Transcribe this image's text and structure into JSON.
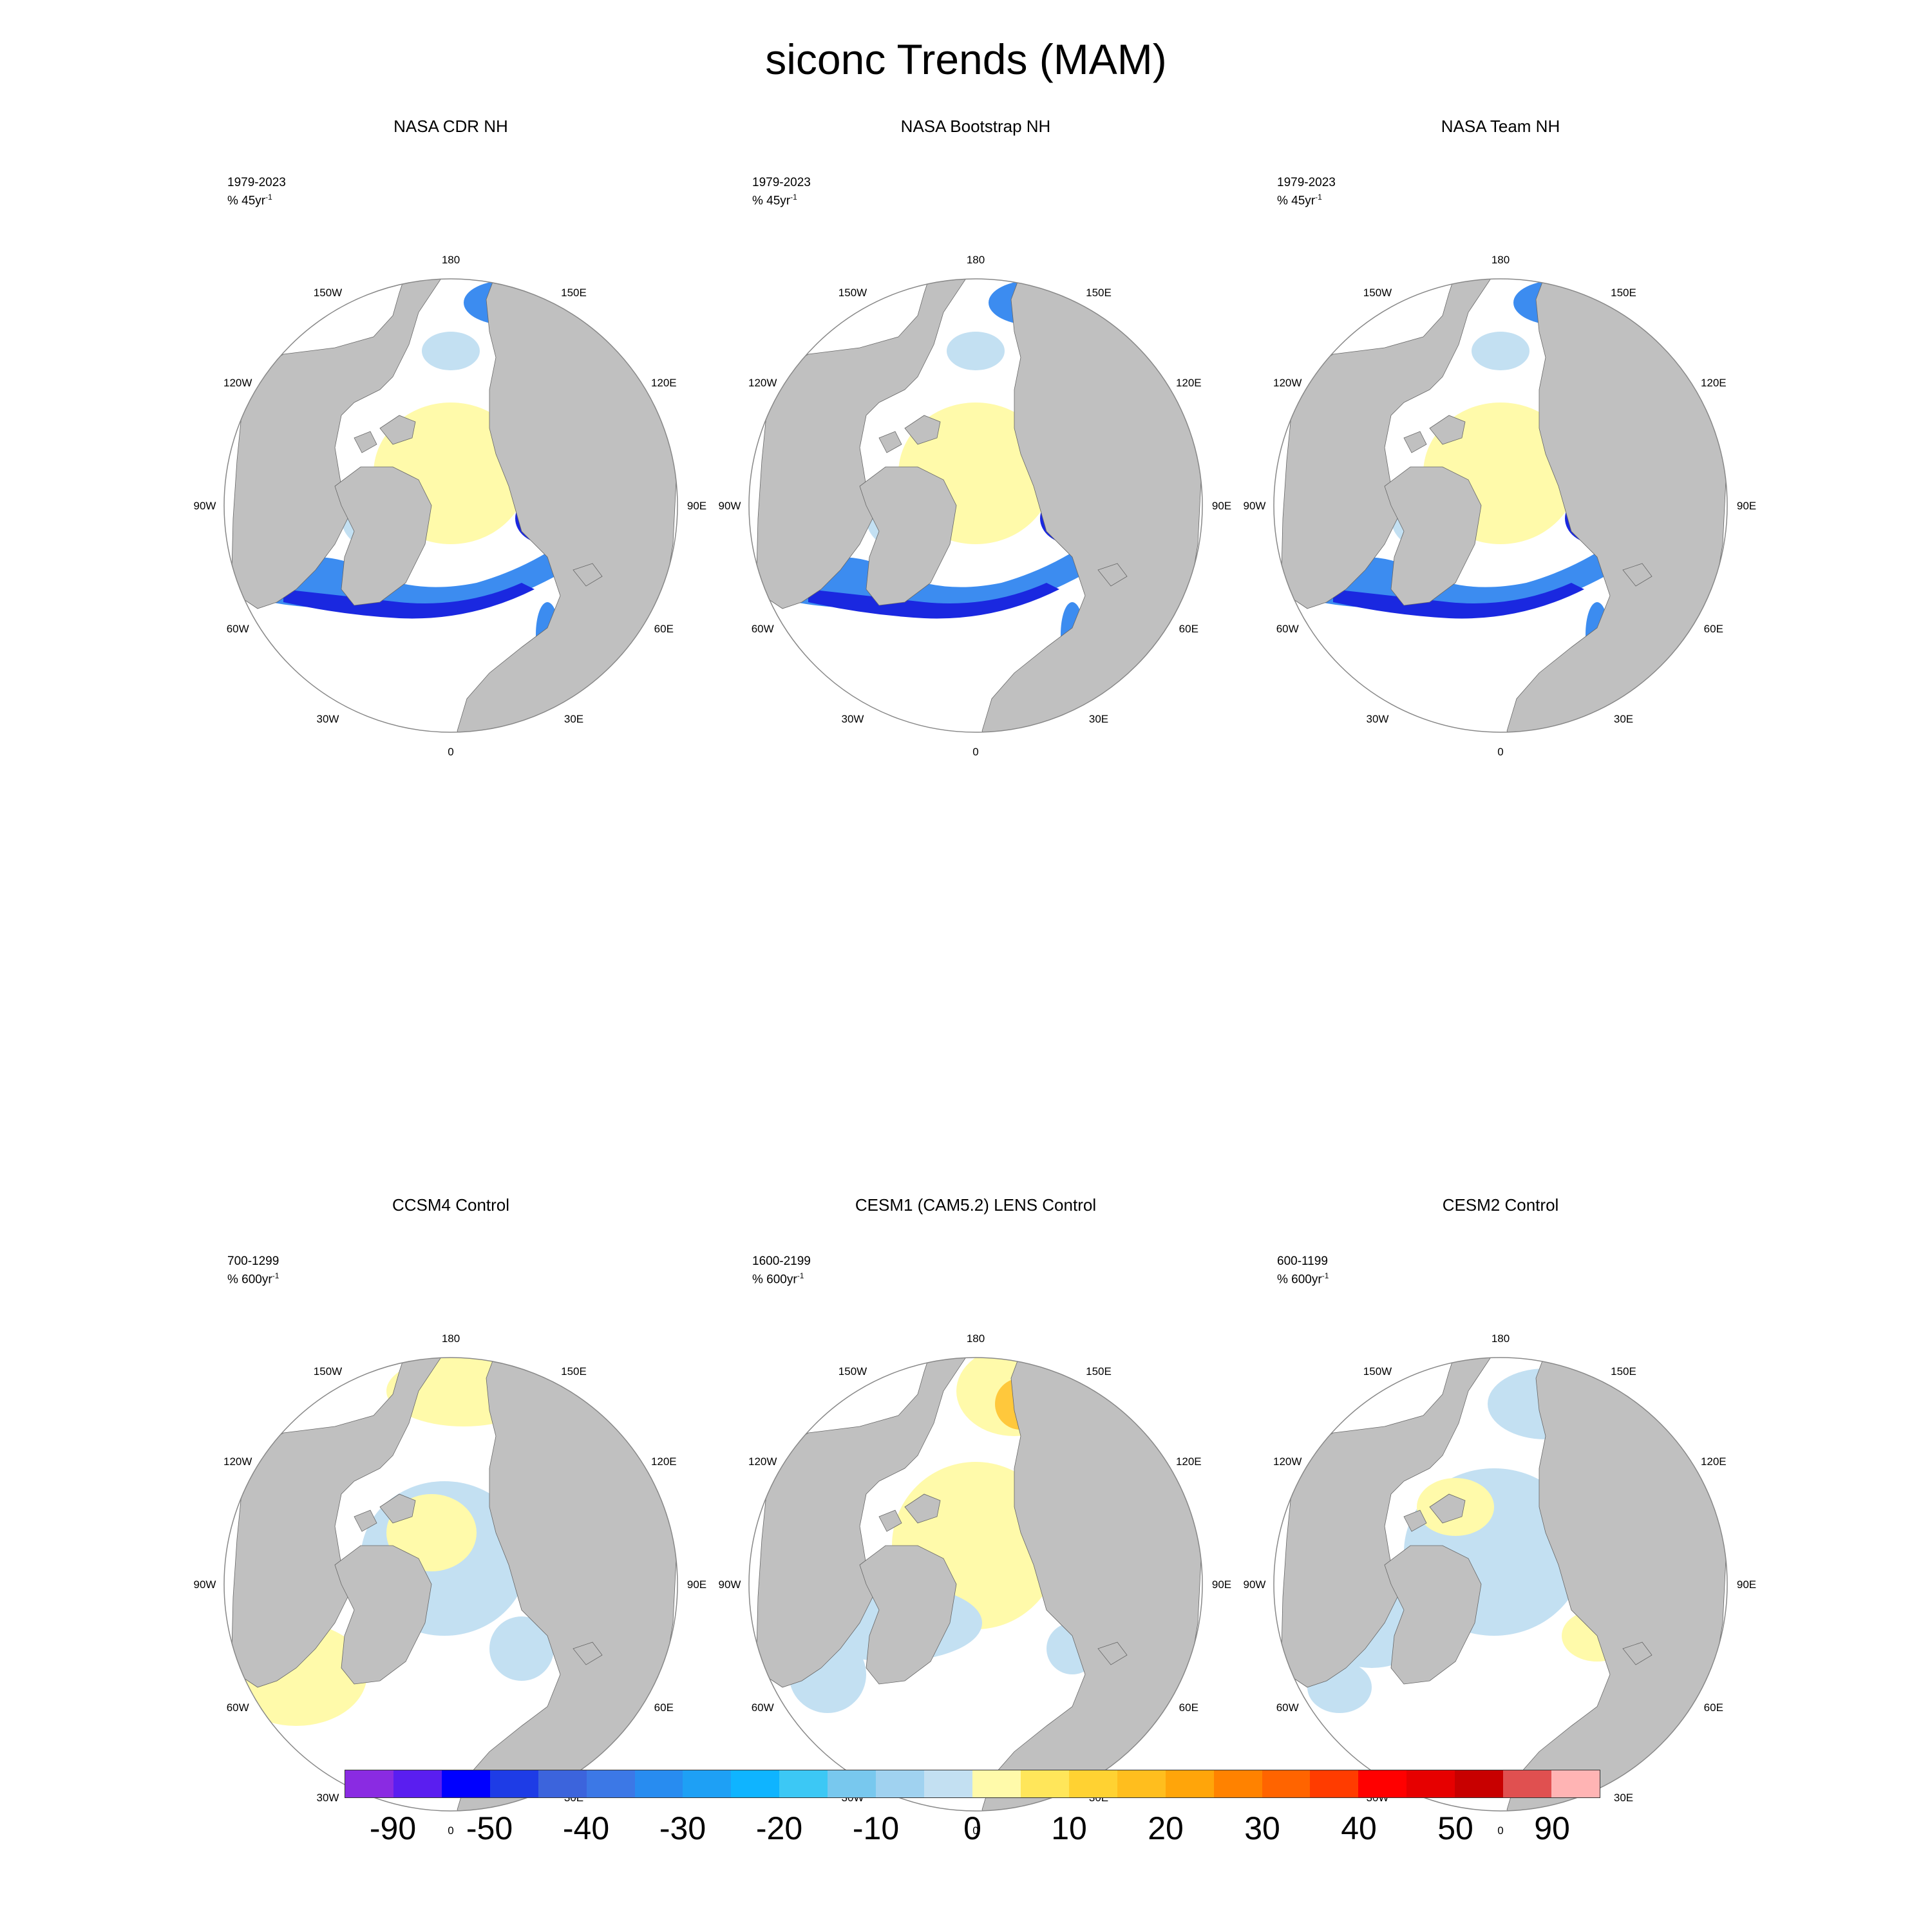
{
  "title": "siconc Trends (MAM)",
  "lon_labels": [
    "180",
    "150E",
    "120E",
    "90E",
    "60E",
    "30E",
    "0",
    "30W",
    "60W",
    "90W",
    "120W",
    "150W"
  ],
  "panels": [
    {
      "title": "NASA CDR NH",
      "period": "1979-2023",
      "units_prefix": "% 45yr",
      "units_exp": "-1",
      "pattern": "obs"
    },
    {
      "title": "NASA Bootstrap NH",
      "period": "1979-2023",
      "units_prefix": "% 45yr",
      "units_exp": "-1",
      "pattern": "obs"
    },
    {
      "title": "NASA Team NH",
      "period": "1979-2023",
      "units_prefix": "% 45yr",
      "units_exp": "-1",
      "pattern": "obs"
    },
    {
      "title": "CCSM4 Control",
      "period": "700-1299",
      "units_prefix": "% 600yr",
      "units_exp": "-1",
      "pattern": "ccsm4"
    },
    {
      "title": "CESM1 (CAM5.2) LENS Control",
      "period": "1600-2199",
      "units_prefix": "% 600yr",
      "units_exp": "-1",
      "pattern": "cesm1"
    },
    {
      "title": "CESM2 Control",
      "period": "600-1199",
      "units_prefix": "% 600yr",
      "units_exp": "-1",
      "pattern": "cesm2"
    }
  ],
  "colorbar": {
    "colors": [
      "#8a2be2",
      "#5a1ef0",
      "#0000ff",
      "#1e3ce6",
      "#3c64dc",
      "#3c78e6",
      "#288cf0",
      "#1ea0f5",
      "#0fb4ff",
      "#3cc8f5",
      "#78c8ee",
      "#a0d2f0",
      "#c3e0f2",
      "#fffaaa",
      "#ffe65a",
      "#ffd232",
      "#ffbe1e",
      "#ffa50a",
      "#ff8200",
      "#ff6400",
      "#ff3c00",
      "#ff0000",
      "#e60000",
      "#c80000",
      "#e05050",
      "#ffb4b4"
    ],
    "labels": [
      "-90",
      "-50",
      "-40",
      "-30",
      "-20",
      "-10",
      "0",
      "10",
      "20",
      "30",
      "40",
      "50",
      "90"
    ]
  },
  "palette": {
    "land": "#c0c0c0",
    "ocean": "#ffffff",
    "dark_blue": "#1a28e0",
    "mid_blue": "#3c8cf0",
    "light_blue": "#c3e0f2",
    "yellow": "#fffaaa",
    "orange": "#ffc83c"
  }
}
